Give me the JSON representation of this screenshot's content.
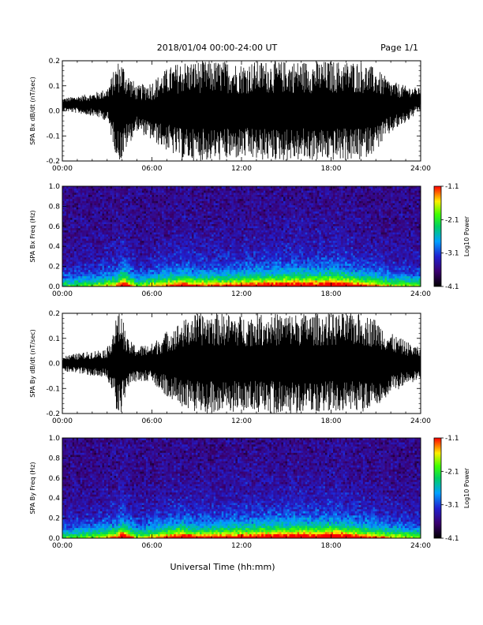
{
  "header": {
    "title": "2018/01/04  00:00-24:00 UT",
    "page": "Page 1/1"
  },
  "xlabel": "Universal Time (hh:mm)",
  "chart_data": [
    {
      "type": "line",
      "ylabel": "SPA Bx dB/dt (nT/sec)",
      "xlim": [
        "00:00",
        "24:00"
      ],
      "ylim": [
        -0.2,
        0.2
      ],
      "x_ticks": [
        "00:00",
        "06:00",
        "12:00",
        "18:00",
        "24:00"
      ],
      "y_ticks": [
        "-0.2",
        "-0.1",
        "0.0",
        "0.1",
        "0.2"
      ],
      "series": [
        {
          "x": [
            0,
            1,
            2,
            3,
            3.7,
            4,
            4.3,
            5,
            6,
            7,
            8,
            9,
            10,
            11,
            12,
            13,
            14,
            15,
            16,
            17,
            18,
            19,
            20,
            21,
            22,
            23,
            24
          ],
          "y_max": [
            0.05,
            0.06,
            0.07,
            0.09,
            0.2,
            0.2,
            0.16,
            0.1,
            0.12,
            0.17,
            0.2,
            0.2,
            0.2,
            0.2,
            0.19,
            0.2,
            0.2,
            0.2,
            0.2,
            0.2,
            0.2,
            0.2,
            0.2,
            0.17,
            0.12,
            0.1,
            0.09
          ],
          "y_min": [
            0.0,
            -0.01,
            -0.02,
            -0.04,
            -0.2,
            -0.2,
            -0.15,
            -0.08,
            -0.12,
            -0.16,
            -0.2,
            -0.2,
            -0.2,
            -0.2,
            -0.19,
            -0.2,
            -0.2,
            -0.2,
            -0.2,
            -0.2,
            -0.2,
            -0.2,
            -0.2,
            -0.16,
            -0.09,
            -0.05,
            0.0
          ]
        }
      ]
    },
    {
      "type": "heatmap",
      "ylabel": "SPA Bx Freq (Hz)",
      "colorbar_label": "Log10 Power",
      "colorbar_ticks": [
        "-1.1",
        "-2.1",
        "-3.1",
        "-4.1"
      ],
      "zlim": [
        -4.1,
        -1.1
      ],
      "xlim": [
        "00:00",
        "24:00"
      ],
      "ylim": [
        0.0,
        1.0
      ],
      "x_ticks": [
        "00:00",
        "06:00",
        "12:00",
        "18:00",
        "24:00"
      ],
      "y_ticks": [
        "0.0",
        "0.2",
        "0.4",
        "0.6",
        "0.8",
        "1.0"
      ],
      "activity_hours": [
        0,
        2,
        3.7,
        4,
        5,
        7,
        8,
        9,
        11,
        13,
        14,
        16,
        17,
        18,
        19,
        20,
        21,
        22,
        24
      ],
      "activity_level": [
        0.2,
        0.3,
        0.55,
        0.95,
        0.3,
        0.6,
        0.75,
        0.6,
        0.65,
        0.75,
        0.8,
        0.85,
        0.8,
        0.95,
        0.8,
        0.65,
        0.55,
        0.4,
        0.3
      ]
    },
    {
      "type": "line",
      "ylabel": "SPA By dB/dt (nT/sec)",
      "xlim": [
        "00:00",
        "24:00"
      ],
      "ylim": [
        -0.2,
        0.2
      ],
      "x_ticks": [
        "00:00",
        "06:00",
        "12:00",
        "18:00",
        "24:00"
      ],
      "y_ticks": [
        "-0.2",
        "-0.1",
        "0.0",
        "0.1",
        "0.2"
      ],
      "series": [
        {
          "x": [
            0,
            1,
            2,
            3,
            3.7,
            4,
            4.3,
            5,
            6,
            7,
            8,
            9,
            10,
            11,
            12,
            13,
            14,
            15,
            16,
            17,
            18,
            19,
            20,
            21,
            22,
            23,
            24
          ],
          "y_max": [
            0.03,
            0.04,
            0.05,
            0.06,
            0.2,
            0.2,
            0.1,
            0.07,
            0.08,
            0.13,
            0.17,
            0.2,
            0.2,
            0.2,
            0.19,
            0.2,
            0.2,
            0.2,
            0.2,
            0.2,
            0.2,
            0.2,
            0.2,
            0.18,
            0.12,
            0.09,
            0.06
          ],
          "y_min": [
            -0.03,
            -0.04,
            -0.05,
            -0.06,
            -0.2,
            -0.2,
            -0.1,
            -0.07,
            -0.08,
            -0.13,
            -0.17,
            -0.2,
            -0.2,
            -0.2,
            -0.19,
            -0.2,
            -0.2,
            -0.2,
            -0.2,
            -0.2,
            -0.2,
            -0.2,
            -0.2,
            -0.18,
            -0.12,
            -0.09,
            -0.06
          ]
        }
      ]
    },
    {
      "type": "heatmap",
      "ylabel": "SPA By Freq (Hz)",
      "colorbar_label": "Log10 Power",
      "colorbar_ticks": [
        "-1.1",
        "-2.1",
        "-3.1",
        "-4.1"
      ],
      "zlim": [
        -4.1,
        -1.1
      ],
      "xlim": [
        "00:00",
        "24:00"
      ],
      "ylim": [
        0.0,
        1.0
      ],
      "x_ticks": [
        "00:00",
        "06:00",
        "12:00",
        "18:00",
        "24:00"
      ],
      "y_ticks": [
        "0.0",
        "0.2",
        "0.4",
        "0.6",
        "0.8",
        "1.0"
      ],
      "activity_hours": [
        0,
        2,
        3.7,
        4,
        5,
        7,
        8,
        9,
        11,
        13,
        14,
        16,
        17,
        18,
        19,
        20,
        21,
        22,
        24
      ],
      "activity_level": [
        0.25,
        0.35,
        0.6,
        0.95,
        0.35,
        0.65,
        0.8,
        0.65,
        0.7,
        0.8,
        0.85,
        0.9,
        0.85,
        0.95,
        0.85,
        0.7,
        0.6,
        0.45,
        0.35
      ]
    }
  ]
}
